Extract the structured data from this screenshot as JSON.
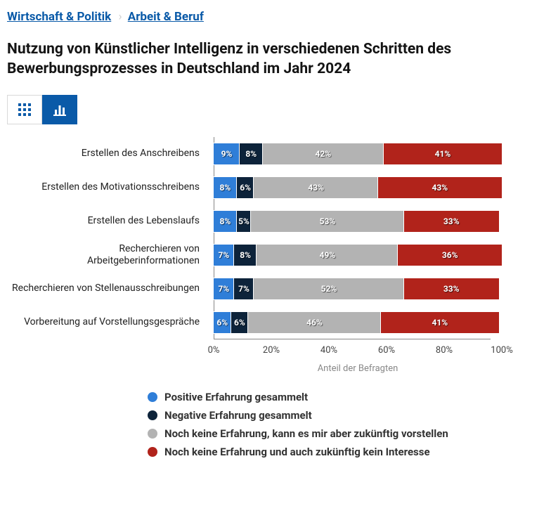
{
  "breadcrumb": {
    "items": [
      {
        "label": "Wirtschaft & Politik"
      },
      {
        "label": "Arbeit & Beruf"
      }
    ],
    "separator": "›"
  },
  "title": "Nutzung von Künstlicher Intelligenz in verschiedenen Schritten des Bewerbungsprozesses in Deutschland im Jahr 2024",
  "chart": {
    "type": "stacked-horizontal-bar",
    "x_axis_label": "Anteil der Befragten",
    "xlim": [
      0,
      100
    ],
    "xtick_step": 20,
    "tick_suffix": "%",
    "colors": {
      "background": "#ffffff",
      "axis": "#888888",
      "tick_label": "#444444"
    },
    "series": [
      {
        "key": "positive",
        "label": "Positive Erfahrung gesammelt",
        "color": "#2f7ed8"
      },
      {
        "key": "negative",
        "label": "Negative Erfahrung gesammelt",
        "color": "#0d233a"
      },
      {
        "key": "vorstellbar",
        "label": "Noch keine Erfahrung, kann es mir aber zukünftig vorstellen",
        "color": "#b3b3b3"
      },
      {
        "key": "kein_interesse",
        "label": "Noch keine Erfahrung und auch zukünftig kein Interesse",
        "color": "#b1231b"
      }
    ],
    "categories": [
      {
        "label": "Erstellen des Anschreibens",
        "values": {
          "positive": 9,
          "negative": 8,
          "vorstellbar": 42,
          "kein_interesse": 41
        }
      },
      {
        "label": "Erstellen des Motivationsschreibens",
        "values": {
          "positive": 8,
          "negative": 6,
          "vorstellbar": 43,
          "kein_interesse": 43
        }
      },
      {
        "label": "Erstellen des Lebenslaufs",
        "values": {
          "positive": 8,
          "negative": 5,
          "vorstellbar": 53,
          "kein_interesse": 33
        }
      },
      {
        "label": "Recherchieren von Arbeitgeberinformationen",
        "values": {
          "positive": 7,
          "negative": 8,
          "vorstellbar": 49,
          "kein_interesse": 36
        }
      },
      {
        "label": "Recherchieren von Stellenausschreibungen",
        "values": {
          "positive": 7,
          "negative": 7,
          "vorstellbar": 52,
          "kein_interesse": 33
        }
      },
      {
        "label": "Vorbereitung auf Vorstellungsgespräche",
        "values": {
          "positive": 6,
          "negative": 6,
          "vorstellbar": 46,
          "kein_interesse": 41
        }
      }
    ],
    "fontsize": {
      "label": 14,
      "segment": 12,
      "tick": 13,
      "axis_label": 13
    }
  },
  "toolbar": {
    "view_table": "table-view",
    "view_chart": "chart-view",
    "active": "chart"
  }
}
